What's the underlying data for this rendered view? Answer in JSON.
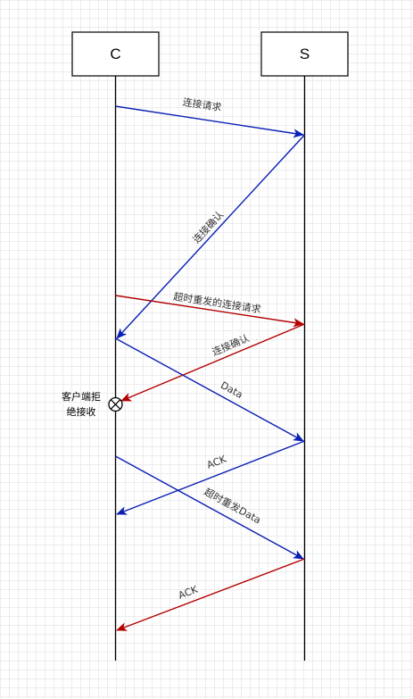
{
  "participants": {
    "client": "C",
    "server": "S"
  },
  "messages": {
    "m1": "连接请求",
    "m2": "连接确认",
    "m3": "超时重发的连接请求",
    "m4": "连接确认",
    "m5": "Data",
    "m6": "ACK",
    "m7": "超时重发Data",
    "m8": "ACK"
  },
  "note": {
    "line1": "客户端拒",
    "line2": "绝接收"
  },
  "colors": {
    "blue": "#0a1fb4",
    "red": "#b30000",
    "black": "#000000"
  }
}
